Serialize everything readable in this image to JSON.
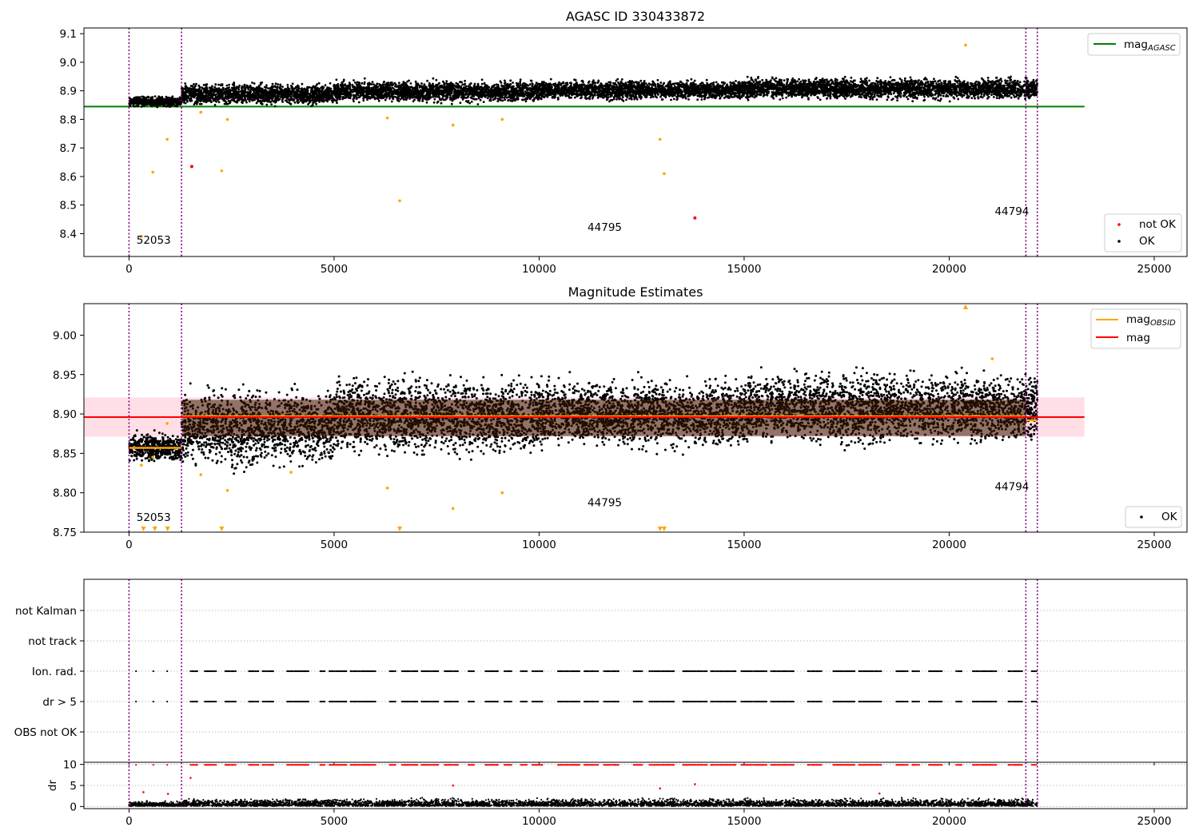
{
  "colors": {
    "ok": "#000000",
    "not_ok": "#ff0000",
    "obsid": "#ffa500",
    "agasc": "#008000",
    "mag": "#ff0000",
    "band": "#ffc0cb",
    "obs_line": "#800080",
    "dark_band": "#3a1a00"
  },
  "chart_data": [
    {
      "type": "scatter",
      "title": "AGASC ID 330433872",
      "xlim": [
        -1100,
        25800
      ],
      "ylim": [
        8.32,
        9.12
      ],
      "xticks": [
        "0",
        "5000",
        "10000",
        "15000",
        "20000",
        "25000"
      ],
      "yticks": [
        "8.4",
        "8.5",
        "8.6",
        "8.7",
        "8.8",
        "8.9",
        "9.0",
        "9.1"
      ],
      "obs_boundaries": [
        0,
        1280,
        21870,
        22150
      ],
      "obsid_labels": [
        {
          "text": "52053",
          "x": 600,
          "y": 8.365
        },
        {
          "text": "44795",
          "x": 11600,
          "y": 8.41
        },
        {
          "text": "44794",
          "x": 21530,
          "y": 8.465
        }
      ],
      "agasc_mag": 8.845,
      "legend_top": [
        {
          "name": "mag",
          "sub": "AGASC"
        }
      ],
      "legend_bottom": [
        {
          "name": "not OK"
        },
        {
          "name": "OK"
        }
      ],
      "outliers_orange": [
        [
          300,
          8.39
        ],
        [
          580,
          8.615
        ],
        [
          930,
          8.73
        ],
        [
          1750,
          8.825
        ],
        [
          2400,
          8.8
        ],
        [
          2260,
          8.62
        ],
        [
          6300,
          8.805
        ],
        [
          6600,
          8.515
        ],
        [
          7900,
          8.78
        ],
        [
          9100,
          8.8
        ],
        [
          12950,
          8.73
        ],
        [
          13050,
          8.61
        ],
        [
          20400,
          9.06
        ]
      ],
      "outliers_red": [
        [
          1530,
          8.635
        ],
        [
          13800,
          8.455
        ]
      ],
      "ok_bands": [
        {
          "x0": 0,
          "x1": 1280,
          "lo": 8.84,
          "hi": 8.885
        },
        {
          "x0": 1280,
          "x1": 5000,
          "lo": 8.84,
          "hi": 8.935
        },
        {
          "x0": 5000,
          "x1": 10000,
          "lo": 8.85,
          "hi": 8.945
        },
        {
          "x0": 10000,
          "x1": 15000,
          "lo": 8.86,
          "hi": 8.945
        },
        {
          "x0": 15000,
          "x1": 22150,
          "lo": 8.86,
          "hi": 8.955
        }
      ]
    },
    {
      "type": "scatter",
      "title": "Magnitude Estimates",
      "xlim": [
        -1100,
        25800
      ],
      "ylim": [
        8.75,
        9.04
      ],
      "xticks": [
        "0",
        "5000",
        "10000",
        "15000",
        "20000",
        "25000"
      ],
      "yticks": [
        "8.75",
        "8.80",
        "8.85",
        "8.90",
        "8.95",
        "9.00"
      ],
      "obs_boundaries": [
        0,
        1280,
        21870,
        22150
      ],
      "obsid_labels": [
        {
          "text": "52053",
          "x": 600,
          "y": 8.764
        },
        {
          "text": "44795",
          "x": 11600,
          "y": 8.783
        },
        {
          "text": "44794",
          "x": 21530,
          "y": 8.803
        }
      ],
      "mag": 8.896,
      "mag_band": [
        8.871,
        8.921
      ],
      "obsid_segments": [
        {
          "x0": 0,
          "x1": 1280,
          "y": 8.857
        },
        {
          "x0": 1280,
          "x1": 21870,
          "y": 8.897
        },
        {
          "x0": 21870,
          "x1": 22150,
          "y": 8.892
        }
      ],
      "legend_top": [
        {
          "name": "mag",
          "sub": "OBSID"
        },
        {
          "name": "mag"
        }
      ],
      "legend_bottom": [
        {
          "name": "OK"
        }
      ],
      "outliers_orange": [
        [
          300,
          8.835
        ],
        [
          580,
          8.845
        ],
        [
          930,
          8.888
        ],
        [
          1750,
          8.823
        ],
        [
          2400,
          8.803
        ],
        [
          3950,
          8.826
        ],
        [
          6300,
          8.806
        ],
        [
          7900,
          8.78
        ],
        [
          9100,
          8.8
        ],
        [
          21050,
          8.97
        ]
      ],
      "clipped_down": [
        350,
        630,
        940,
        2260,
        6600,
        12950,
        13050
      ],
      "clipped_up": [
        20400
      ]
    },
    {
      "type": "scatter",
      "categories": [
        "not Kalman",
        "not track",
        "Ion. rad.",
        "dr > 5",
        "OBS not OK"
      ],
      "xlim": [
        -1100,
        25800
      ]
    },
    {
      "type": "scatter",
      "ylabel": "dr",
      "xlim": [
        -1100,
        25800
      ],
      "ylim": [
        -0.5,
        10.5
      ],
      "xticks": [
        "0",
        "5000",
        "10000",
        "15000",
        "20000",
        "25000"
      ],
      "yticks": [
        "0",
        "5",
        "10"
      ],
      "red_points": [
        [
          350,
          3.4
        ],
        [
          950,
          3.0
        ],
        [
          1500,
          6.8
        ],
        [
          7900,
          5.0
        ],
        [
          12950,
          4.3
        ],
        [
          13800,
          5.3
        ],
        [
          18300,
          3.1
        ]
      ]
    }
  ]
}
